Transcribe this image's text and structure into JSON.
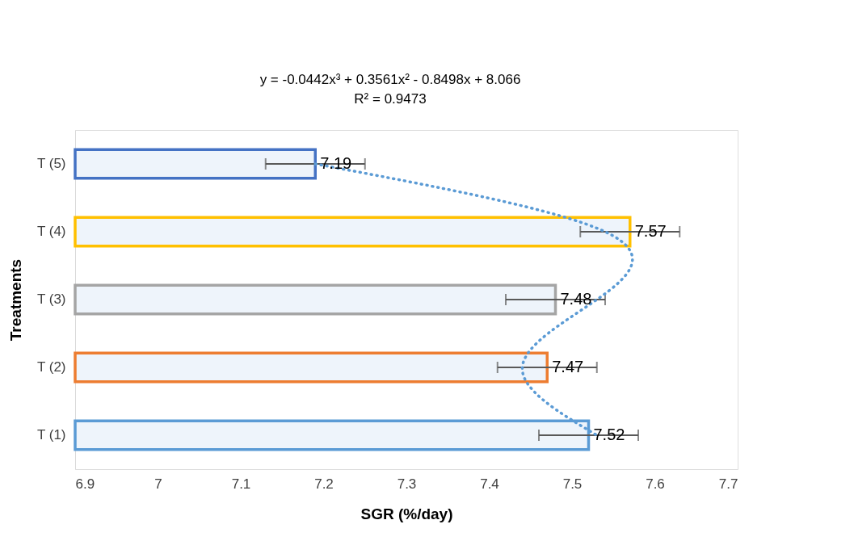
{
  "chart_data": {
    "type": "bar",
    "orientation": "horizontal",
    "xlabel": "SGR (%/day)",
    "ylabel": "Treatments",
    "annotations": [
      "y = -0.0442x³ + 0.3561x² - 0.8498x + 8.066",
      "R² = 0.9473"
    ],
    "categories": [
      "T (5)",
      "T (4)",
      "T (3)",
      "T (2)",
      "T (1)"
    ],
    "values": [
      7.19,
      7.57,
      7.48,
      7.47,
      7.52
    ],
    "colors": [
      "#4472c4",
      "#ffc000",
      "#a5a5a5",
      "#ed7d31",
      "#5b9bd5"
    ],
    "errors": [
      0.06,
      0.06,
      0.06,
      0.06,
      0.06
    ],
    "value_labels": [
      "7.19",
      "7.57",
      "7.48",
      "7.47",
      "7.52"
    ],
    "series": [
      {
        "type": "line",
        "line_style": "dotted",
        "color": "#5b9bd5",
        "values": [
          7.19,
          7.54,
          7.53,
          7.44,
          7.53
        ]
      }
    ],
    "xlim": [
      6.9,
      7.7
    ],
    "xticks": [
      6.9,
      7.0,
      7.1,
      7.2,
      7.3,
      7.4,
      7.5,
      7.6,
      7.7
    ],
    "grid": false
  }
}
